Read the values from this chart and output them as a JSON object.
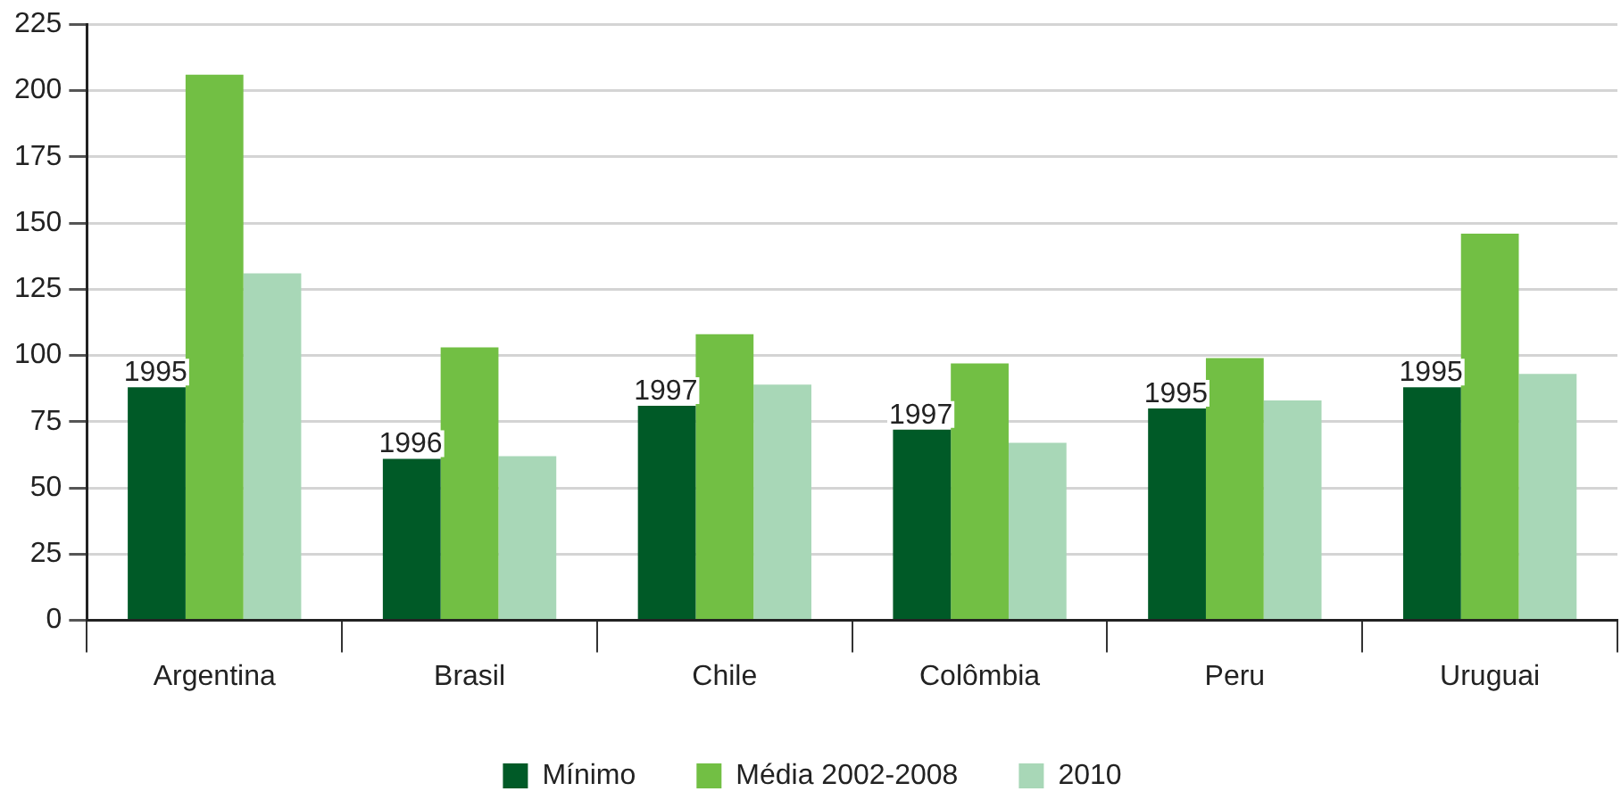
{
  "chart_data": {
    "type": "bar",
    "categories": [
      "Argentina",
      "Brasil",
      "Chile",
      "Colômbia",
      "Peru",
      "Uruguai"
    ],
    "series": [
      {
        "name": "Mínimo",
        "color": "#005a27",
        "values": [
          88,
          61,
          81,
          72,
          80,
          88
        ]
      },
      {
        "name": "Média 2002-2008",
        "color": "#72bf44",
        "values": [
          206,
          103,
          108,
          97,
          99,
          146
        ]
      },
      {
        "name": "2010",
        "color": "#a8d7b7",
        "values": [
          131,
          62,
          89,
          67,
          83,
          93
        ]
      }
    ],
    "ylim": [
      0,
      225
    ],
    "yticks": [
      0,
      25,
      50,
      75,
      100,
      125,
      150,
      175,
      200,
      225
    ],
    "grid": "y",
    "legend": "bottom",
    "annotations": [
      "1995",
      "1996",
      "1997",
      "1997",
      "1995",
      "1995"
    ]
  }
}
